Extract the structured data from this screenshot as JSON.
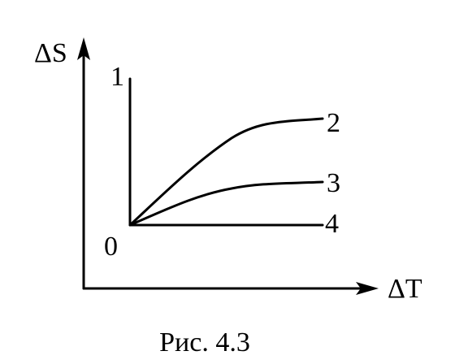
{
  "axes": {
    "y_label": "ΔS",
    "x_label": "ΔT",
    "origin": "0"
  },
  "curves": [
    {
      "label": "1"
    },
    {
      "label": "2"
    },
    {
      "label": "3"
    },
    {
      "label": "4"
    }
  ],
  "caption": "Рис. 4.3"
}
